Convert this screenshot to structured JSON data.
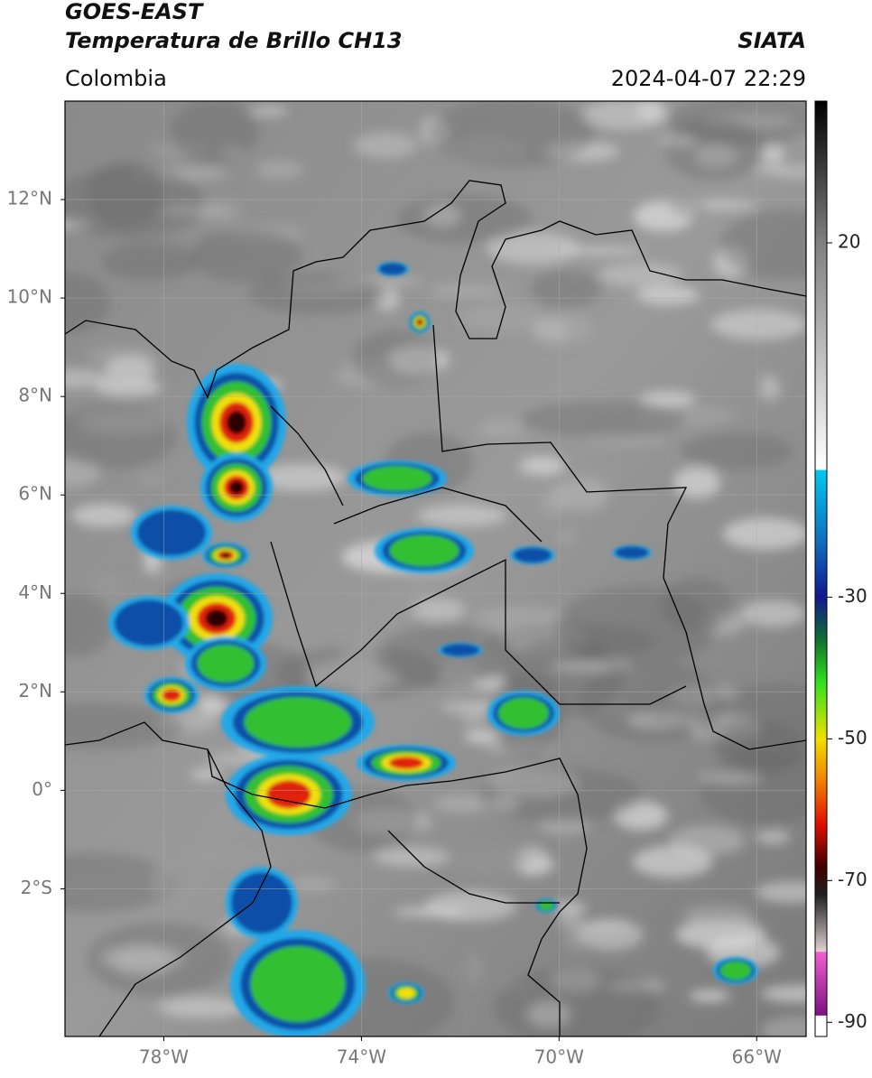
{
  "header": {
    "title": "GOES-EAST",
    "subtitle": "Temperatura de Brillo CH13",
    "source": "SIATA",
    "region": "Colombia",
    "datetime": "2024-04-07 22:29"
  },
  "map": {
    "xlim": [
      -80,
      -65
    ],
    "ylim": [
      -5,
      14
    ],
    "grid": true,
    "xticks": [
      {
        "value": -78,
        "label": "78°W"
      },
      {
        "value": -74,
        "label": "74°W"
      },
      {
        "value": -70,
        "label": "70°W"
      },
      {
        "value": -66,
        "label": "66°W"
      }
    ],
    "yticks": [
      {
        "value": 12,
        "label": "12°N"
      },
      {
        "value": 10,
        "label": "10°N"
      },
      {
        "value": 8,
        "label": "8°N"
      },
      {
        "value": 6,
        "label": "6°N"
      },
      {
        "value": 4,
        "label": "4°N"
      },
      {
        "value": 2,
        "label": "2°N"
      },
      {
        "value": 0,
        "label": "0°"
      },
      {
        "value": -2,
        "label": "2°S"
      }
    ]
  },
  "colorbar": {
    "clim": [
      -92,
      40
    ],
    "ticks": [
      20,
      -30,
      -50,
      -70,
      -90
    ],
    "colormap": [
      {
        "value": 40,
        "color": "#000000"
      },
      {
        "value": 30,
        "color": "#404040"
      },
      {
        "value": 20,
        "color": "#808080"
      },
      {
        "value": 0,
        "color": "#d0d0d0"
      },
      {
        "value": -12,
        "color": "#ffffff"
      },
      {
        "value": -12.1,
        "color": "#00c8f0"
      },
      {
        "value": -22,
        "color": "#1070c0"
      },
      {
        "value": -30,
        "color": "#101890"
      },
      {
        "value": -36,
        "color": "#107030"
      },
      {
        "value": -42,
        "color": "#30e020"
      },
      {
        "value": -50,
        "color": "#f0e000"
      },
      {
        "value": -56,
        "color": "#f08000"
      },
      {
        "value": -62,
        "color": "#e01000"
      },
      {
        "value": -68,
        "color": "#400000"
      },
      {
        "value": -72,
        "color": "#202020"
      },
      {
        "value": -80,
        "color": "#e0d0d0"
      },
      {
        "value": -80.1,
        "color": "#f060d0"
      },
      {
        "value": -89,
        "color": "#801080"
      },
      {
        "value": -89.1,
        "color": "#ffffff"
      },
      {
        "value": -92,
        "color": "#ffffff"
      }
    ]
  }
}
